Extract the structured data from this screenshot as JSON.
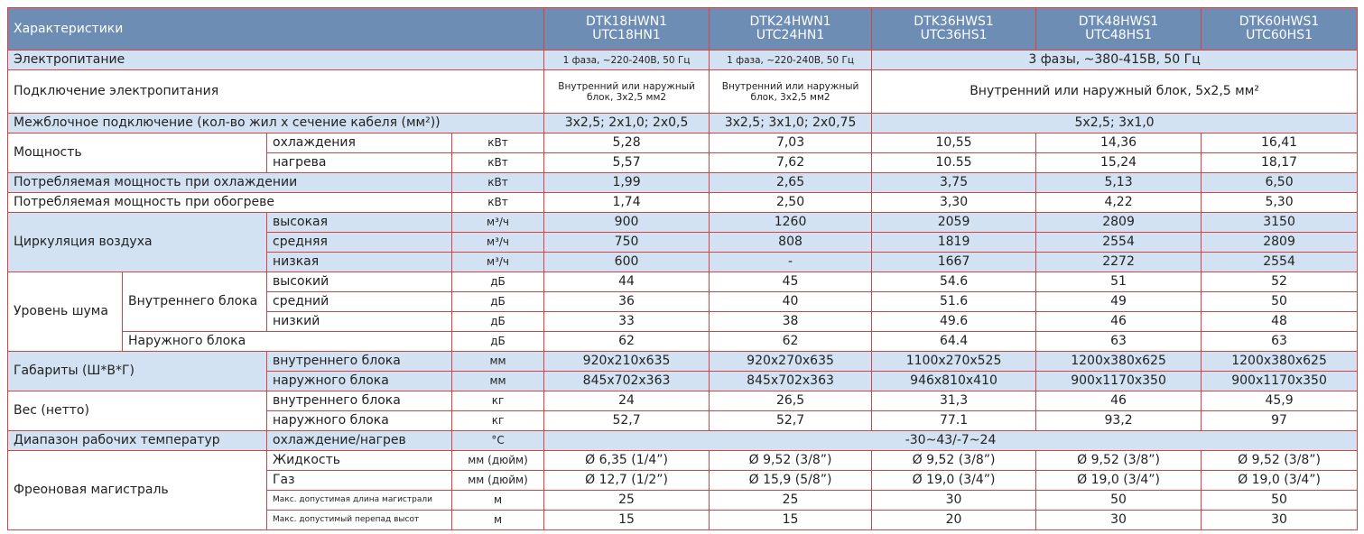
{
  "table": {
    "header": {
      "title": "Характеристики",
      "models": [
        {
          "indoor": "DTK18HWN1",
          "outdoor": "UTC18HN1"
        },
        {
          "indoor": "DTK24HWN1",
          "outdoor": "UTC24HN1"
        },
        {
          "indoor": "DTK36HWS1",
          "outdoor": "UTC36HS1"
        },
        {
          "indoor": "DTK48HWS1",
          "outdoor": "UTC48HS1"
        },
        {
          "indoor": "DTK60HWS1",
          "outdoor": "UTC60HS1"
        }
      ]
    },
    "power_supply": {
      "label": "Электропитание",
      "values": [
        "1 фаза, ~220-240В, 50 Гц",
        "1 фаза, ~220-240В, 50 Гц",
        "3 фазы, ~380-415В, 50 Гц"
      ]
    },
    "power_connection": {
      "label": "Подключение электропитания",
      "values": [
        "Внутренний или наружный блок, 3х2,5 мм2",
        "Внутренний или наружный блок, 3х2,5 мм2",
        "Внутренний или наружный блок, 5х2,5 мм²"
      ]
    },
    "interconnect": {
      "label": "Межблочное подключение (кол-во жил х сечение кабеля (мм²))",
      "values": [
        "3х2,5; 2х1,0; 2х0,5",
        "3х2,5; 3х1,0; 2х0,75",
        "5х2,5; 3х1,0"
      ]
    },
    "capacity": {
      "label": "Мощность",
      "rows": [
        {
          "mode": "охлаждения",
          "unit": "кВт",
          "values": [
            "5,28",
            "7,03",
            "10,55",
            "14,36",
            "16,41"
          ]
        },
        {
          "mode": "нагрева",
          "unit": "кВт",
          "values": [
            "5,57",
            "7,62",
            "10.55",
            "15,24",
            "18,17"
          ]
        }
      ]
    },
    "input_cooling": {
      "label": "Потребляемая мощность при охлаждении",
      "unit": "кВт",
      "values": [
        "1,99",
        "2,65",
        "3,75",
        "5,13",
        "6,50"
      ]
    },
    "input_heating": {
      "label": "Потребляемая мощность при обогреве",
      "unit": "кВт",
      "values": [
        "1,74",
        "2,50",
        "3,30",
        "4,22",
        "5,30"
      ]
    },
    "airflow": {
      "label": "Циркуляция воздуха",
      "rows": [
        {
          "mode": "высокая",
          "unit": "м³/ч",
          "values": [
            900,
            1260,
            2059,
            2809,
            3150
          ]
        },
        {
          "mode": "средняя",
          "unit": "м³/ч",
          "values": [
            750,
            808,
            1819,
            2554,
            2809
          ]
        },
        {
          "mode": "низкая",
          "unit": "м³/ч",
          "values": [
            600,
            "-",
            1667,
            2272,
            2554
          ]
        }
      ]
    },
    "noise": {
      "label": "Уровень шума",
      "indoor": {
        "label": "Внутреннего блока",
        "rows": [
          {
            "mode": "высокий",
            "unit": "дБ",
            "values": [
              44,
              45,
              54.6,
              51,
              52
            ]
          },
          {
            "mode": "средний",
            "unit": "дБ",
            "values": [
              36,
              40,
              51.6,
              49,
              50
            ]
          },
          {
            "mode": "низкий",
            "unit": "дБ",
            "values": [
              33,
              38,
              49.6,
              46,
              48
            ]
          }
        ]
      },
      "outdoor": {
        "label": "Наружного блока",
        "unit": "дБ",
        "values": [
          62,
          62,
          64.4,
          63,
          63
        ]
      }
    },
    "dimensions": {
      "label": "Габариты (Ш*В*Г)",
      "rows": [
        {
          "mode": "внутреннего блока",
          "unit": "мм",
          "values": [
            "920x210x635",
            "920x270x635",
            "1100x270x525",
            "1200x380x625",
            "1200x380x625"
          ]
        },
        {
          "mode": "наружного блока",
          "unit": "мм",
          "values": [
            "845x702x363",
            "845x702x363",
            "946x810x410",
            "900x1170x350",
            "900x1170x350"
          ]
        }
      ]
    },
    "weight": {
      "label": "Вес (нетто)",
      "rows": [
        {
          "mode": "внутреннего блока",
          "unit": "кг",
          "values": [
            "24",
            "26,5",
            "31,3",
            "46",
            "45,9"
          ]
        },
        {
          "mode": "наружного блока",
          "unit": "кг",
          "values": [
            "52,7",
            "52,7",
            "77.1",
            "93,2",
            "97"
          ]
        }
      ]
    },
    "temp_range": {
      "label": "Диапазон рабочих температур",
      "mode": "охлаждение/нагрев",
      "unit": "°С",
      "value": "-30~43/-7~24"
    },
    "refrigerant": {
      "label": "Фреоновая магистраль",
      "rows": [
        {
          "mode": "Жидкость",
          "unit": "мм (дюйм)",
          "values": [
            "Ø 6,35 (1/4”)",
            "Ø 9,52 (3/8”)",
            "Ø 9,52 (3/8”)",
            "Ø 9,52 (3/8”)",
            "Ø 9,52 (3/8”)"
          ]
        },
        {
          "mode": "Газ",
          "unit": "мм (дюйм)",
          "values": [
            "Ø 12,7  (1/2”)",
            "Ø 15,9 (5/8”)",
            "Ø 19,0 (3/4”)",
            "Ø 19,0 (3/4”)",
            "Ø 19,0 (3/4”)"
          ]
        },
        {
          "mode": "Макс. допустимая длина магистрали",
          "unit": "м",
          "values": [
            25,
            25,
            30,
            50,
            50
          ]
        },
        {
          "mode": "Макс. допустимый перепад высот",
          "unit": "м",
          "values": [
            15,
            15,
            20,
            30,
            30
          ]
        }
      ]
    }
  }
}
